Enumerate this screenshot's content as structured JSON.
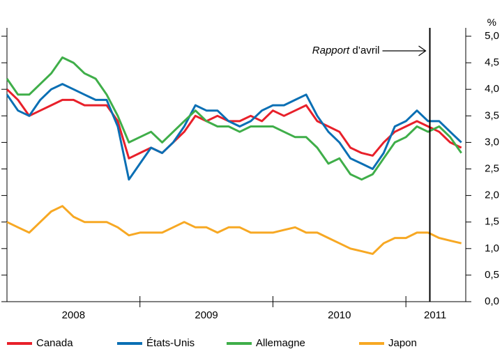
{
  "chart_data": {
    "type": "line",
    "unit": "%",
    "annotation": {
      "italic": "Rapport",
      "text": "d’avril"
    },
    "report_line": 2011.18,
    "x": [
      2008.0,
      2008.083,
      2008.167,
      2008.25,
      2008.333,
      2008.417,
      2008.5,
      2008.583,
      2008.667,
      2008.75,
      2008.833,
      2008.917,
      2009.0,
      2009.083,
      2009.167,
      2009.25,
      2009.333,
      2009.417,
      2009.5,
      2009.583,
      2009.667,
      2009.75,
      2009.833,
      2009.917,
      2010.0,
      2010.083,
      2010.167,
      2010.25,
      2010.333,
      2010.417,
      2010.5,
      2010.583,
      2010.667,
      2010.75,
      2010.833,
      2010.917,
      2011.0,
      2011.083,
      2011.167,
      2011.25,
      2011.333,
      2011.417
    ],
    "xlim": [
      2008,
      2011.45
    ],
    "xticks": [
      {
        "value": 2008.5,
        "label": "2008"
      },
      {
        "value": 2009.5,
        "label": "2009"
      },
      {
        "value": 2010.5,
        "label": "2010"
      },
      {
        "value": 2011.22,
        "label": "2011"
      }
    ],
    "year_boundaries": [
      2009,
      2010,
      2011
    ],
    "ylim": [
      0,
      5
    ],
    "yticks": [
      {
        "value": 0,
        "label": "0,0"
      },
      {
        "value": 0.5,
        "label": "0,5"
      },
      {
        "value": 1,
        "label": "1,0"
      },
      {
        "value": 1.5,
        "label": "1,5"
      },
      {
        "value": 2,
        "label": "2,0"
      },
      {
        "value": 2.5,
        "label": "2,5"
      },
      {
        "value": 3,
        "label": "3,0"
      },
      {
        "value": 3.5,
        "label": "3,5"
      },
      {
        "value": 4,
        "label": "4,0"
      },
      {
        "value": 4.5,
        "label": "4,5"
      },
      {
        "value": 5,
        "label": "5,0"
      }
    ],
    "series": [
      {
        "name": "Canada",
        "color": "#e8202a",
        "values": [
          4.0,
          3.8,
          3.5,
          3.6,
          3.7,
          3.8,
          3.8,
          3.7,
          3.7,
          3.7,
          3.4,
          2.7,
          2.8,
          2.9,
          2.8,
          3.0,
          3.2,
          3.5,
          3.4,
          3.5,
          3.4,
          3.4,
          3.5,
          3.4,
          3.6,
          3.5,
          3.6,
          3.7,
          3.4,
          3.3,
          3.2,
          2.9,
          2.8,
          2.75,
          3.0,
          3.2,
          3.3,
          3.4,
          3.3,
          3.2,
          3.0,
          2.9
        ]
      },
      {
        "name": "États-Unis",
        "color": "#0a6fb4",
        "values": [
          3.9,
          3.6,
          3.5,
          3.8,
          4.0,
          4.1,
          4.0,
          3.9,
          3.8,
          3.8,
          3.3,
          2.3,
          2.6,
          2.9,
          2.8,
          3.0,
          3.3,
          3.7,
          3.6,
          3.6,
          3.4,
          3.3,
          3.4,
          3.6,
          3.7,
          3.7,
          3.8,
          3.9,
          3.5,
          3.2,
          3.0,
          2.7,
          2.6,
          2.5,
          2.8,
          3.3,
          3.4,
          3.6,
          3.4,
          3.4,
          3.2,
          3.0
        ]
      },
      {
        "name": "Allemagne",
        "color": "#3fae49",
        "values": [
          4.2,
          3.9,
          3.9,
          4.1,
          4.3,
          4.6,
          4.5,
          4.3,
          4.2,
          3.9,
          3.5,
          3.0,
          3.1,
          3.2,
          3.0,
          3.2,
          3.4,
          3.6,
          3.4,
          3.3,
          3.3,
          3.2,
          3.3,
          3.3,
          3.3,
          3.2,
          3.1,
          3.1,
          2.9,
          2.6,
          2.7,
          2.4,
          2.3,
          2.4,
          2.7,
          3.0,
          3.1,
          3.3,
          3.2,
          3.3,
          3.1,
          2.8
        ]
      },
      {
        "name": "Japon",
        "color": "#f7a823",
        "values": [
          1.5,
          1.4,
          1.3,
          1.5,
          1.7,
          1.8,
          1.6,
          1.5,
          1.5,
          1.5,
          1.4,
          1.25,
          1.3,
          1.3,
          1.3,
          1.4,
          1.5,
          1.4,
          1.4,
          1.3,
          1.4,
          1.4,
          1.3,
          1.3,
          1.3,
          1.35,
          1.4,
          1.3,
          1.3,
          1.2,
          1.1,
          1.0,
          0.95,
          0.9,
          1.1,
          1.2,
          1.2,
          1.3,
          1.3,
          1.2,
          1.15,
          1.1
        ]
      }
    ]
  }
}
